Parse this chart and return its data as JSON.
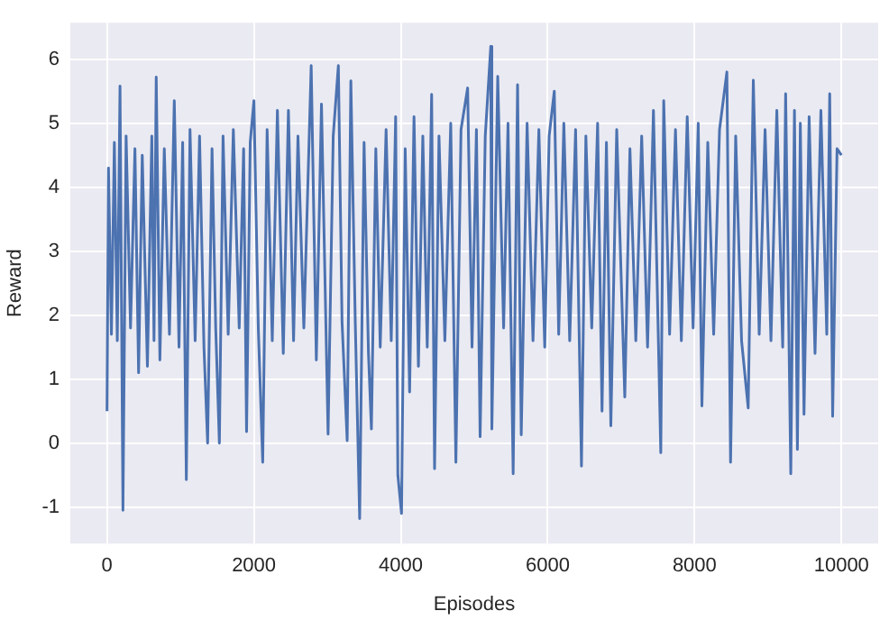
{
  "chart_data": {
    "type": "line",
    "xlabel": "Episodes",
    "ylabel": "Reward",
    "x": [
      0,
      20,
      60,
      100,
      140,
      177,
      217,
      260,
      320,
      380,
      430,
      480,
      550,
      610,
      640,
      670,
      720,
      780,
      850,
      916,
      980,
      1030,
      1080,
      1130,
      1200,
      1260,
      1320,
      1370,
      1430,
      1480,
      1530,
      1580,
      1650,
      1720,
      1800,
      1860,
      1900,
      1950,
      2000,
      2060,
      2120,
      2180,
      2250,
      2320,
      2400,
      2470,
      2540,
      2600,
      2680,
      2780,
      2850,
      2920,
      3010,
      3080,
      3150,
      3200,
      3270,
      3320,
      3380,
      3440,
      3500,
      3560,
      3600,
      3660,
      3720,
      3800,
      3870,
      3930,
      3960,
      4010,
      4060,
      4120,
      4180,
      4240,
      4300,
      4360,
      4420,
      4460,
      4520,
      4600,
      4680,
      4750,
      4820,
      4910,
      4970,
      5030,
      5080,
      5150,
      5225,
      5240,
      5320,
      5400,
      5460,
      5530,
      5590,
      5640,
      5720,
      5800,
      5880,
      5960,
      6020,
      6090,
      6150,
      6220,
      6300,
      6380,
      6460,
      6520,
      6600,
      6680,
      6740,
      6800,
      6860,
      6940,
      7050,
      7120,
      7200,
      7280,
      7360,
      7440,
      7540,
      7580,
      7660,
      7740,
      7820,
      7900,
      7980,
      8050,
      8100,
      8180,
      8260,
      8340,
      8440,
      8490,
      8560,
      8640,
      8730,
      8800,
      8880,
      8960,
      9040,
      9120,
      9200,
      9240,
      9310,
      9360,
      9400,
      9440,
      9490,
      9560,
      9640,
      9720,
      9800,
      9840,
      9880,
      9940,
      10000
    ],
    "series": [
      {
        "color": "#4c72b0",
        "values": [
          0.5,
          4.3,
          1.7,
          4.7,
          1.6,
          5.58,
          -1.05,
          4.8,
          1.8,
          4.6,
          1.1,
          4.5,
          1.2,
          4.8,
          1.6,
          5.72,
          1.3,
          4.6,
          1.7,
          5.35,
          1.5,
          4.7,
          -0.57,
          4.9,
          1.6,
          4.8,
          1.5,
          0.0,
          4.6,
          1.8,
          0.0,
          4.8,
          1.7,
          4.9,
          1.8,
          4.6,
          0.18,
          4.7,
          5.35,
          1.8,
          -0.3,
          4.9,
          1.6,
          5.2,
          1.4,
          5.2,
          1.6,
          4.8,
          1.8,
          5.9,
          1.3,
          5.3,
          0.14,
          4.8,
          5.9,
          1.9,
          0.04,
          5.66,
          1.9,
          -1.18,
          4.7,
          1.4,
          0.22,
          4.6,
          1.5,
          4.9,
          1.6,
          5.1,
          -0.5,
          -1.1,
          4.6,
          0.8,
          5.1,
          1.2,
          4.8,
          1.5,
          5.45,
          -0.4,
          4.8,
          1.6,
          5.0,
          -0.3,
          4.9,
          5.55,
          1.5,
          4.9,
          0.1,
          4.8,
          6.2,
          0.22,
          5.73,
          1.8,
          5.0,
          -0.48,
          5.6,
          0.13,
          5.0,
          1.6,
          4.9,
          1.5,
          4.8,
          5.5,
          1.7,
          5.0,
          1.6,
          4.9,
          -0.36,
          4.8,
          1.8,
          5.0,
          0.5,
          4.7,
          0.27,
          4.9,
          0.72,
          4.6,
          1.6,
          4.8,
          1.5,
          5.2,
          -0.15,
          5.35,
          1.7,
          4.9,
          1.6,
          5.1,
          1.8,
          5.0,
          0.58,
          4.7,
          1.7,
          4.9,
          5.8,
          -0.3,
          4.8,
          1.6,
          0.55,
          5.67,
          1.7,
          4.9,
          1.6,
          5.2,
          1.5,
          5.46,
          -0.48,
          5.2,
          -0.1,
          5.0,
          0.45,
          5.1,
          1.4,
          5.2,
          1.7,
          5.46,
          0.42,
          4.6,
          4.5
        ]
      }
    ],
    "xlim": [
      -500,
      10500
    ],
    "ylim": [
      -1.57,
      6.57
    ],
    "xticks": [
      0,
      2000,
      4000,
      6000,
      8000,
      10000
    ],
    "yticks": [
      -1,
      0,
      1,
      2,
      3,
      4,
      5,
      6
    ],
    "grid": true
  }
}
